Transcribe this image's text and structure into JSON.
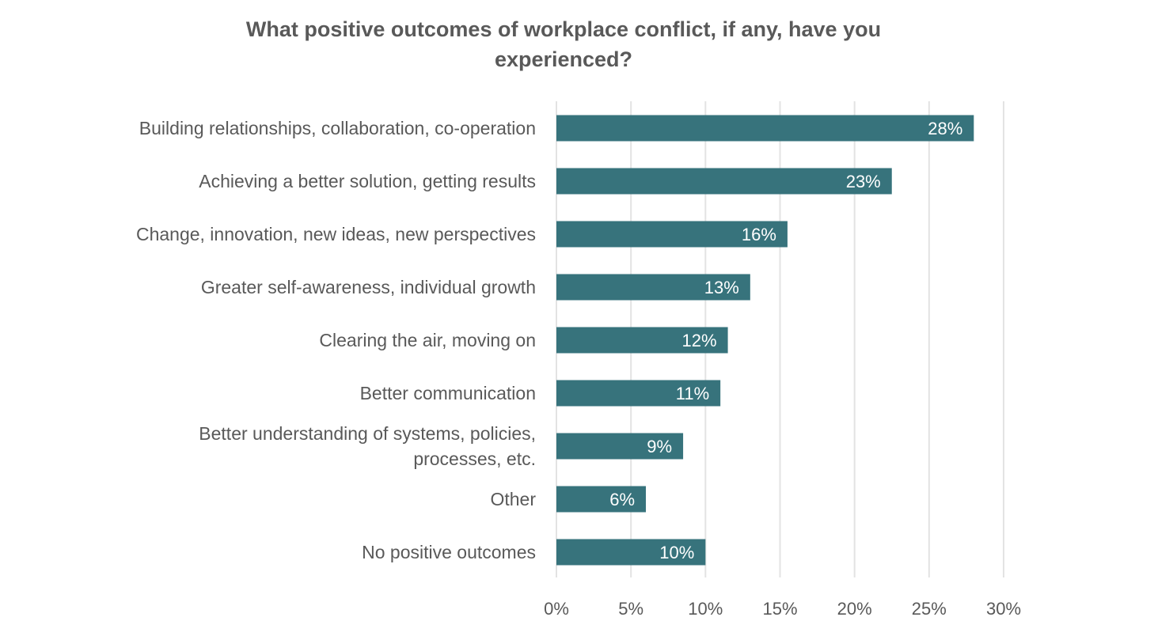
{
  "chart_data": {
    "type": "bar",
    "orientation": "horizontal",
    "title_lines": [
      "What positive outcomes of workplace conflict, if any, have you",
      "experienced?"
    ],
    "categories": [
      [
        "Building relationships, collaboration, co-operation"
      ],
      [
        "Achieving a better solution, getting results"
      ],
      [
        "Change, innovation, new ideas, new perspectives"
      ],
      [
        "Greater self-awareness, individual growth"
      ],
      [
        "Clearing the air, moving on"
      ],
      [
        "Better communication"
      ],
      [
        "Better understanding of systems, policies,",
        "processes, etc."
      ],
      [
        "Other"
      ],
      [
        "No positive outcomes"
      ]
    ],
    "values": [
      28,
      22.5,
      15.5,
      13,
      11.5,
      11,
      8.5,
      6,
      10
    ],
    "data_labels": [
      "28%",
      "23%",
      "16%",
      "13%",
      "12%",
      "11%",
      "9%",
      "6%",
      "10%"
    ],
    "xlim": [
      0,
      30
    ],
    "x_ticks": [
      0,
      5,
      10,
      15,
      20,
      25,
      30
    ],
    "x_tick_labels": [
      "0%",
      "5%",
      "10%",
      "15%",
      "20%",
      "25%",
      "30%"
    ],
    "grid": "vertical",
    "legend": "none",
    "colors": {
      "bar": "#37737c",
      "grid": "#e3e3e3",
      "text": "#595959"
    }
  }
}
